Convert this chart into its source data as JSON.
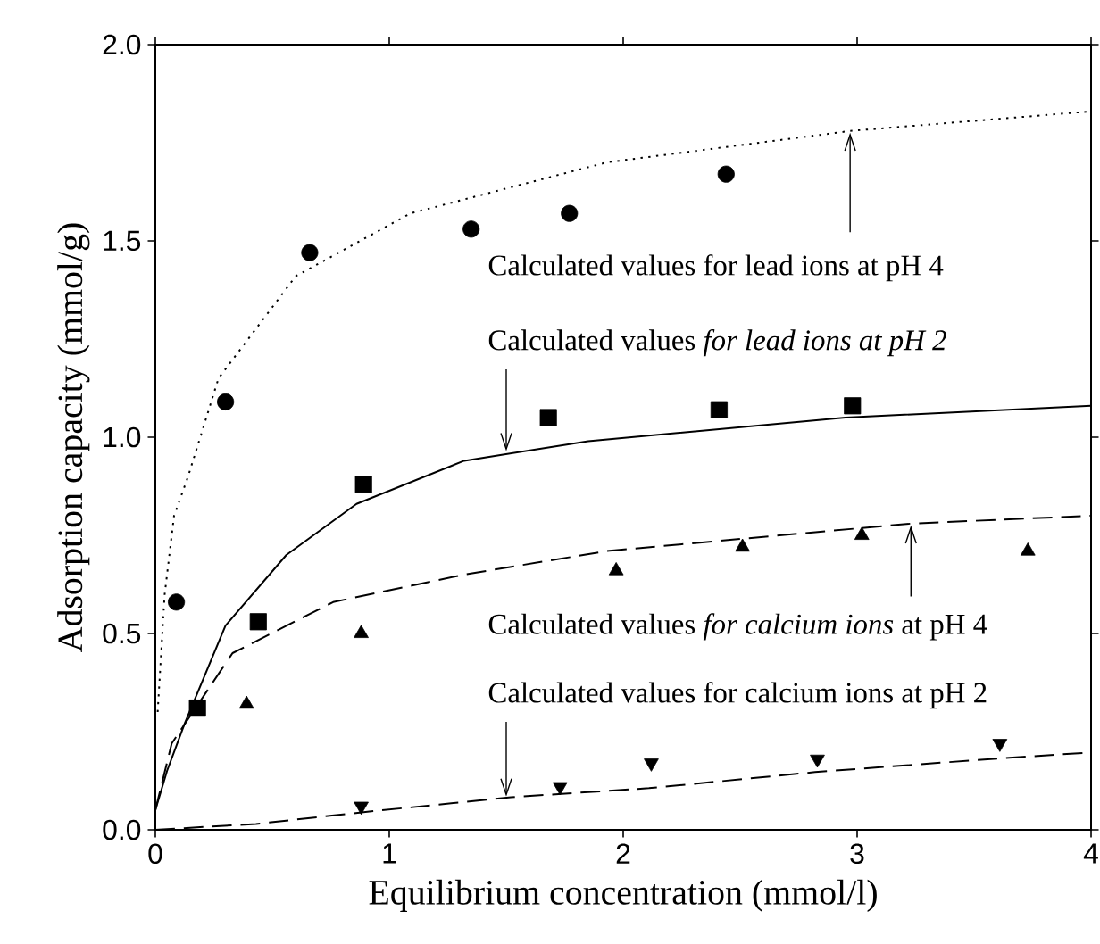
{
  "chart_data": {
    "type": "scatter",
    "xlabel": "Equilibrium concentration (mmol/l)",
    "ylabel": "Adsorption capacity (mmol/g)",
    "xlim": [
      0,
      4
    ],
    "ylim": [
      0,
      2.0
    ],
    "xticks": [
      0,
      1,
      2,
      3,
      4
    ],
    "yticks": [
      {
        "value": 0,
        "label": "0.0"
      },
      {
        "value": 0.5,
        "label": "0.5"
      },
      {
        "value": 1.0,
        "label": "1.0"
      },
      {
        "value": 1.5,
        "label": "1.5"
      },
      {
        "value": 2.0,
        "label": "2.0"
      }
    ],
    "series": [
      {
        "marker": "circle",
        "color": "#000000",
        "x": [
          0.09,
          0.3,
          0.66,
          1.35,
          1.77,
          2.44
        ],
        "values": [
          0.58,
          1.09,
          1.47,
          1.53,
          1.57,
          1.67
        ]
      },
      {
        "marker": "square",
        "color": "#000000",
        "x": [
          0.18,
          0.44,
          0.89,
          1.68,
          2.41,
          2.98
        ],
        "values": [
          0.31,
          0.53,
          0.88,
          1.05,
          1.07,
          1.08
        ]
      },
      {
        "marker": "triangle",
        "color": "#000000",
        "x": [
          0.39,
          0.88,
          1.97,
          2.51,
          3.02,
          3.73
        ],
        "values": [
          0.32,
          0.5,
          0.66,
          0.72,
          0.75,
          0.71
        ]
      },
      {
        "marker": "triangle-down",
        "color": "#000000",
        "x": [
          0.88,
          1.73,
          2.12,
          2.83,
          3.61
        ],
        "values": [
          0.06,
          0.11,
          0.17,
          0.18,
          0.22
        ]
      },
      {
        "type": "line",
        "line_style": "dotted",
        "color": "#000000",
        "x": [
          0.01,
          0.04,
          0.08,
          0.14,
          0.27,
          0.6,
          1.09,
          1.93,
          2.97,
          4.0
        ],
        "values": [
          0.3,
          0.6,
          0.8,
          0.9,
          1.15,
          1.41,
          1.57,
          1.7,
          1.78,
          1.83
        ]
      },
      {
        "type": "line",
        "line_style": "solid",
        "color": "#000000",
        "x": [
          0.0,
          0.05,
          0.125,
          0.3,
          0.56,
          0.86,
          1.32,
          1.85,
          2.95,
          4.0
        ],
        "values": [
          0.05,
          0.15,
          0.27,
          0.52,
          0.7,
          0.83,
          0.94,
          0.99,
          1.05,
          1.08
        ]
      },
      {
        "type": "line",
        "line_style": "dashed",
        "color": "#000000",
        "x": [
          0.0,
          0.07,
          0.33,
          0.76,
          1.32,
          1.93,
          3.23,
          4.0
        ],
        "values": [
          0.05,
          0.22,
          0.45,
          0.58,
          0.65,
          0.71,
          0.78,
          0.8
        ]
      },
      {
        "type": "line",
        "line_style": "dashed",
        "color": "#000000",
        "x": [
          0.0,
          0.43,
          0.89,
          1.52,
          2.11,
          2.82,
          3.61,
          4.0
        ],
        "values": [
          0.0,
          0.015,
          0.045,
          0.083,
          0.106,
          0.147,
          0.182,
          0.197
        ]
      }
    ],
    "annotations": [
      {
        "text": "Calculated values for lead ions at pH 4",
        "x": 2.97,
        "y": 1.78
      },
      {
        "text": "Calculated values *for lead ions at pH 2*",
        "x": 1.5,
        "y": 0.96
      },
      {
        "text": "Calculated values *for calcium ions* at pH 4",
        "x": 3.23,
        "y": 0.78
      },
      {
        "text": "Calculated values for calcium ions at pH 2",
        "x": 1.5,
        "y": 0.08
      }
    ]
  }
}
